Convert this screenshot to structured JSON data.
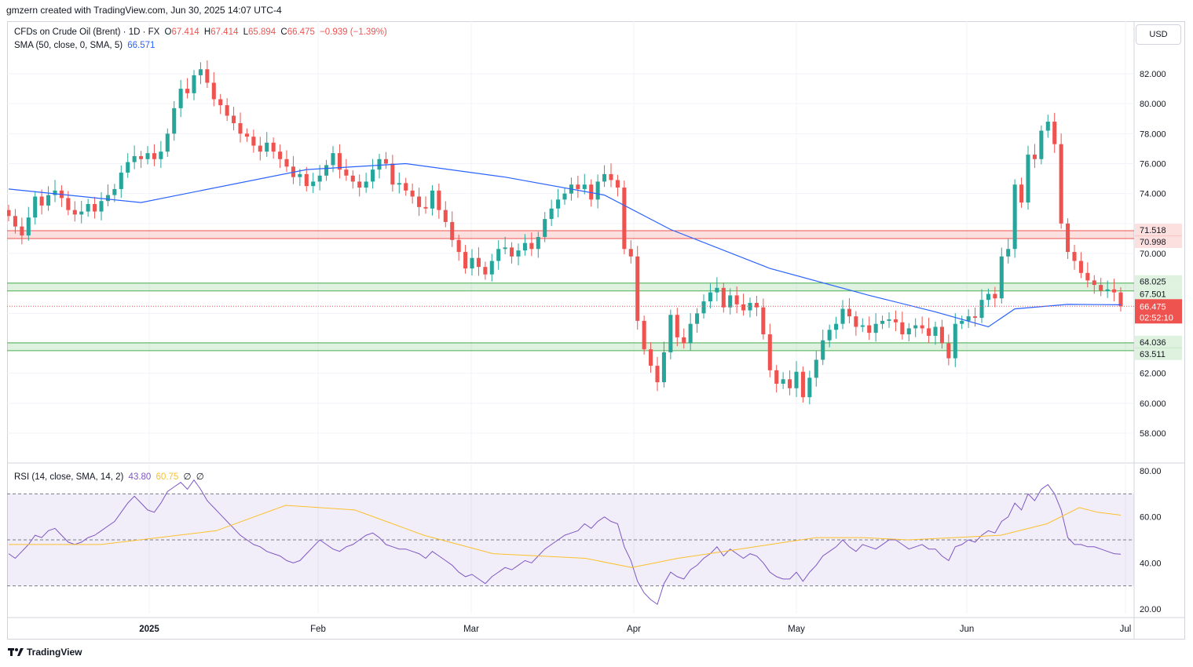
{
  "header": {
    "author_line": "gmzern created with TradingView.com, Jun 30, 2025 14:07 UTC-4"
  },
  "legend": {
    "symbol": "CFDs on Crude Oil (Brent) · 1D · FX",
    "o_label": "O",
    "o_value": "67.414",
    "h_label": "H",
    "h_value": "67.414",
    "l_label": "L",
    "l_value": "65.894",
    "c_label": "C",
    "c_value": "66.475",
    "change": "−0.939 (−1.39%)",
    "sma_label": "SMA (50, close, 0, SMA, 5)",
    "sma_value": "66.571",
    "rsi_label": "RSI (14, close, SMA, 14, 2)",
    "rsi_value": "43.80",
    "rsi_sma_value": "60.75",
    "rsi_extra1": "∅",
    "rsi_extra2": "∅"
  },
  "currency_button": "USD",
  "footer": {
    "brand": "TradingView"
  },
  "colors": {
    "up": "#26a69a",
    "down": "#ef5350",
    "sma": "#2962ff",
    "rsi": "#7e57c2",
    "rsi_ma": "#fbc02d",
    "resistance_zone": "#ef5350",
    "support_zone": "#4caf50"
  },
  "chart_data": [
    {
      "type": "candlestick",
      "title": "CFDs on Crude Oil (Brent)",
      "ylim": [
        56,
        84
      ],
      "y_ticks": [
        "82.000",
        "80.000",
        "78.000",
        "76.000",
        "74.000",
        "70.000",
        "62.000",
        "60.000",
        "58.000"
      ],
      "x_tick_labels": [
        "2025",
        "Feb",
        "Mar",
        "Apr",
        "May",
        "Jun",
        "Jul"
      ],
      "price_labels": [
        {
          "text": "71.518",
          "value": 71.518,
          "color": "#ef5350"
        },
        {
          "text": "70.998",
          "value": 70.998,
          "color": "#ef5350"
        },
        {
          "text": "68.025",
          "value": 68.025,
          "color": "#4caf50"
        },
        {
          "text": "67.501",
          "value": 67.501,
          "color": "#4caf50"
        },
        {
          "text": "64.036",
          "value": 64.036,
          "color": "#4caf50"
        },
        {
          "text": "63.511",
          "value": 63.511,
          "color": "#4caf50"
        }
      ],
      "current_price": {
        "value": 66.475,
        "text": "66.475",
        "countdown": "02:52:10"
      },
      "zones": [
        {
          "name": "resistance",
          "from": 70.998,
          "to": 71.518,
          "color": "#ef5350"
        },
        {
          "name": "support-1",
          "from": 67.501,
          "to": 68.025,
          "color": "#4caf50"
        },
        {
          "name": "support-2",
          "from": 63.511,
          "to": 64.036,
          "color": "#4caf50"
        }
      ],
      "candles_close": [
        72.5,
        71.8,
        71.2,
        72.4,
        73.8,
        73.2,
        73.9,
        74.2,
        73.7,
        72.9,
        72.6,
        72.8,
        73.3,
        72.8,
        73.5,
        73.9,
        74.3,
        75.4,
        76.1,
        76.5,
        76.3,
        76.7,
        76.3,
        76.8,
        78.0,
        79.7,
        81.0,
        80.7,
        81.9,
        82.3,
        81.4,
        80.3,
        79.9,
        79.2,
        78.7,
        78.0,
        77.8,
        77.2,
        76.8,
        77.4,
        76.8,
        76.3,
        75.8,
        75.1,
        75.3,
        74.5,
        74.8,
        75.2,
        75.9,
        76.7,
        75.6,
        75.2,
        74.8,
        74.4,
        74.8,
        75.6,
        76.3,
        76.0,
        74.6,
        74.7,
        74.2,
        73.8,
        73.1,
        73.0,
        74.2,
        72.9,
        72.1,
        70.9,
        70.1,
        69.0,
        69.7,
        69.1,
        68.6,
        69.5,
        70.3,
        70.4,
        69.8,
        70.2,
        70.7,
        70.3,
        71.1,
        72.3,
        73.0,
        73.6,
        74.0,
        74.6,
        74.3,
        74.6,
        73.6,
        74.8,
        75.3,
        74.9,
        74.4,
        70.3,
        69.8,
        65.5,
        63.6,
        62.5,
        61.4,
        63.4,
        65.9,
        64.4,
        64.0,
        65.3,
        66.0,
        66.8,
        67.4,
        67.7,
        66.4,
        67.2,
        66.6,
        66.2,
        66.7,
        66.4,
        64.6,
        62.2,
        61.3,
        61.6,
        61.0,
        62.1,
        60.4,
        61.7,
        62.9,
        64.2,
        64.9,
        65.3,
        66.3,
        65.8,
        65.1,
        65.2,
        64.7,
        65.3,
        65.5,
        65.6,
        65.4,
        64.6,
        65.0,
        65.2,
        65.0,
        64.5,
        65.1,
        64.0,
        63.0,
        65.3,
        65.5,
        65.8,
        65.7,
        66.9,
        67.3,
        67.0,
        69.8,
        70.3,
        74.6,
        73.4,
        76.6,
        76.3,
        78.2,
        78.8,
        77.3,
        72.0,
        70.1,
        69.5,
        68.7,
        68.2,
        67.9,
        67.5,
        67.6,
        67.4,
        66.475
      ],
      "sma_50_samples": [
        [
          0,
          74.3
        ],
        [
          20,
          73.4
        ],
        [
          45,
          75.6
        ],
        [
          60,
          76.0
        ],
        [
          75,
          75.1
        ],
        [
          90,
          73.9
        ],
        [
          100,
          71.6
        ],
        [
          115,
          69.0
        ],
        [
          130,
          67.2
        ],
        [
          140,
          66.1
        ],
        [
          148,
          65.1
        ],
        [
          152,
          66.3
        ],
        [
          160,
          66.6
        ],
        [
          168,
          66.571
        ]
      ]
    },
    {
      "type": "line",
      "title": "RSI (14, close, SMA, 14, 2)",
      "ylim": [
        17,
        82
      ],
      "y_ticks": [
        "80.00",
        "60.00",
        "40.00",
        "20.00"
      ],
      "bands": [
        30,
        50,
        70
      ],
      "series": [
        {
          "name": "RSI",
          "color": "#7e57c2",
          "values": [
            44,
            42,
            45,
            48,
            52,
            51,
            54,
            55,
            52,
            49,
            48,
            49,
            51,
            52,
            54,
            56,
            58,
            62,
            66,
            69,
            66,
            63,
            62,
            66,
            71,
            73,
            75,
            72,
            76,
            72,
            67,
            64,
            61,
            58,
            55,
            52,
            50,
            48,
            47,
            45,
            44,
            43,
            41,
            40,
            41,
            44,
            47,
            50,
            48,
            46,
            45,
            47,
            48,
            50,
            52,
            53,
            51,
            48,
            47,
            46,
            46,
            45,
            44,
            42,
            45,
            43,
            41,
            39,
            36,
            34,
            35,
            33,
            31,
            34,
            36,
            38,
            37,
            39,
            41,
            40,
            43,
            46,
            48,
            50,
            52,
            53,
            54,
            57,
            55,
            58,
            60,
            58,
            57,
            47,
            41,
            32,
            27,
            24,
            22,
            31,
            36,
            34,
            33,
            37,
            39,
            42,
            44,
            47,
            43,
            46,
            44,
            42,
            44,
            43,
            40,
            36,
            34,
            33,
            33,
            36,
            32,
            36,
            39,
            43,
            45,
            47,
            50,
            47,
            45,
            48,
            47,
            46,
            48,
            50,
            50,
            48,
            46,
            47,
            48,
            46,
            46,
            43,
            41,
            47,
            48,
            50,
            49,
            52,
            54,
            53,
            58,
            60,
            66,
            63,
            70,
            67,
            72,
            74,
            70,
            63,
            51,
            48,
            48,
            47,
            47,
            46,
            45,
            44,
            43.8
          ]
        },
        {
          "name": "RSI-based MA",
          "color": "#fbc02d",
          "values": [
            [
              0,
              48
            ],
            [
              20,
              48
            ],
            [
              45,
              54
            ],
            [
              60,
              65
            ],
            [
              75,
              63
            ],
            [
              90,
              52
            ],
            [
              105,
              44
            ],
            [
              115,
              43
            ],
            [
              125,
              42
            ],
            [
              135,
              38
            ],
            [
              145,
              42
            ],
            [
              155,
              45
            ],
            [
              165,
              48
            ],
            [
              175,
              51
            ],
            [
              185,
              51
            ],
            [
              195,
              50
            ],
            [
              205,
              51
            ],
            [
              215,
              52
            ],
            [
              225,
              57
            ],
            [
              232,
              64
            ],
            [
              236,
              62
            ],
            [
              241,
              60.75
            ]
          ]
        }
      ]
    }
  ]
}
